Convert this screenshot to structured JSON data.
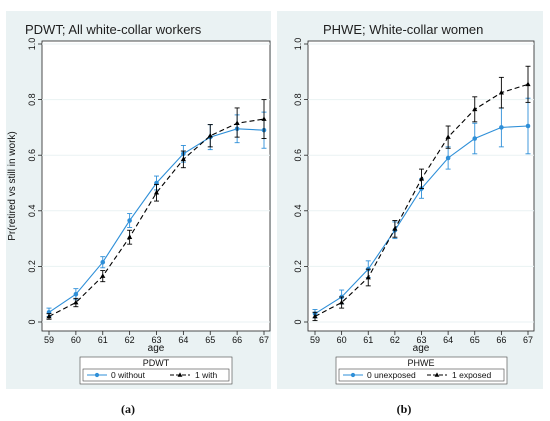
{
  "colors": {
    "background": "#ffffff",
    "panel_bg": "#eaf2f3",
    "plot_bg": "#ffffff",
    "grid": "#eaf2f3",
    "series0": "#2e8fd8",
    "series1": "#000000",
    "title": "#1e1e1e"
  },
  "panels": [
    {
      "sublabel": "(a)",
      "legend_title": "PDWT",
      "chart_data": {
        "type": "line",
        "title": "PDWT; All white-collar workers",
        "xlabel": "age",
        "ylabel": "Pr(retired vs still in work)",
        "x": [
          59,
          60,
          61,
          62,
          63,
          64,
          65,
          66,
          67
        ],
        "xlim": [
          59,
          67
        ],
        "ylim": [
          0,
          1
        ],
        "yticks": [
          "0",
          "0.2",
          "0.4",
          "0.6",
          "0.8",
          "1.0"
        ],
        "grid": true,
        "legend_position": "bottom",
        "series": [
          {
            "name": "0 without",
            "values": [
              0.035,
              0.1,
              0.215,
              0.365,
              0.5,
              0.605,
              0.665,
              0.695,
              0.69
            ],
            "ci_low": [
              0.02,
              0.08,
              0.195,
              0.34,
              0.475,
              0.575,
              0.62,
              0.645,
              0.625
            ],
            "ci_high": [
              0.05,
              0.12,
              0.235,
              0.39,
              0.525,
              0.635,
              0.71,
              0.745,
              0.755
            ]
          },
          {
            "name": "1 with",
            "values": [
              0.02,
              0.07,
              0.165,
              0.305,
              0.465,
              0.585,
              0.67,
              0.715,
              0.73
            ],
            "ci_low": [
              0.01,
              0.055,
              0.145,
              0.28,
              0.435,
              0.555,
              0.63,
              0.665,
              0.66
            ],
            "ci_high": [
              0.03,
              0.085,
              0.185,
              0.33,
              0.495,
              0.615,
              0.71,
              0.77,
              0.8
            ]
          }
        ]
      }
    },
    {
      "sublabel": "(b)",
      "legend_title": "PHWE",
      "chart_data": {
        "type": "line",
        "title": "PHWE; White-collar women",
        "xlabel": "age",
        "ylabel": "",
        "x": [
          59,
          60,
          61,
          62,
          63,
          64,
          65,
          66,
          67
        ],
        "xlim": [
          59,
          67
        ],
        "ylim": [
          0,
          1
        ],
        "yticks": [
          "0",
          "0.2",
          "0.4",
          "0.6",
          "0.8",
          "1.0"
        ],
        "grid": true,
        "legend_position": "bottom",
        "series": [
          {
            "name": "0 unexposed",
            "values": [
              0.03,
              0.09,
              0.19,
              0.33,
              0.48,
              0.59,
              0.66,
              0.7,
              0.705
            ],
            "ci_low": [
              0.015,
              0.065,
              0.16,
              0.3,
              0.445,
              0.55,
              0.605,
              0.63,
              0.605
            ],
            "ci_high": [
              0.045,
              0.115,
              0.22,
              0.36,
              0.515,
              0.63,
              0.715,
              0.77,
              0.805
            ]
          },
          {
            "name": "1 exposed",
            "values": [
              0.02,
              0.07,
              0.16,
              0.335,
              0.515,
              0.665,
              0.765,
              0.825,
              0.855
            ],
            "ci_low": [
              0.005,
              0.05,
              0.13,
              0.305,
              0.48,
              0.625,
              0.72,
              0.77,
              0.79
            ],
            "ci_high": [
              0.035,
              0.09,
              0.19,
              0.365,
              0.55,
              0.705,
              0.81,
              0.88,
              0.92
            ]
          }
        ]
      }
    }
  ]
}
